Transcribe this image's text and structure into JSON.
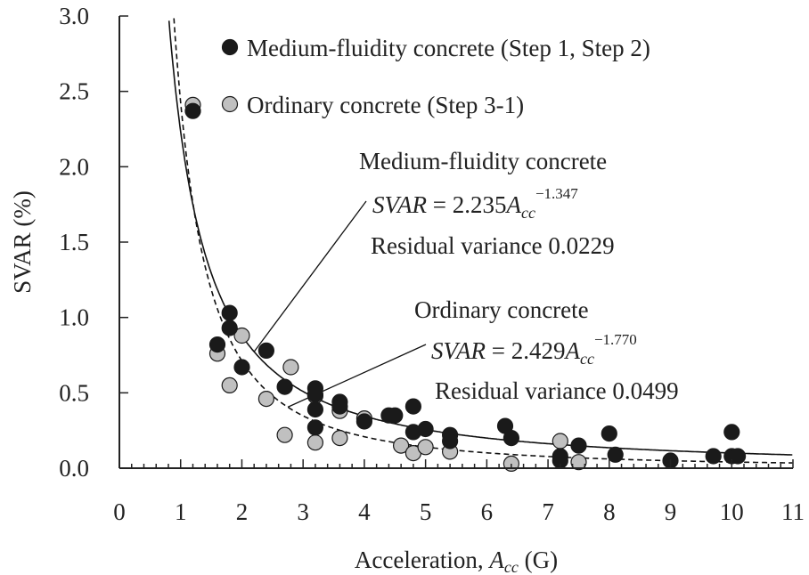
{
  "chart_data": {
    "type": "scatter",
    "xlabel_main": "Acceleration, ",
    "xlabel_var": "A",
    "xlabel_sub": "cc",
    "xlabel_unit": " (G)",
    "ylabel": "SVAR (%)",
    "xlim": [
      0,
      11
    ],
    "ylim": [
      0,
      3
    ],
    "x_ticks": [
      "0",
      "1",
      "2",
      "3",
      "4",
      "5",
      "6",
      "7",
      "8",
      "9",
      "10",
      "11"
    ],
    "y_ticks": [
      "0.0",
      "0.5",
      "1.0",
      "1.5",
      "2.0",
      "2.5",
      "3.0"
    ],
    "legend": [
      {
        "label": "Medium-fluidity concrete (Step 1, Step 2)",
        "color": "#1a1a1a"
      },
      {
        "label": "Ordinary concrete (Step 3-1)",
        "color": "#c0c0c0"
      }
    ],
    "series": [
      {
        "name": "Medium-fluidity concrete (Step 1, Step 2)",
        "color": "#1a1a1a",
        "points": [
          [
            1.2,
            2.37
          ],
          [
            1.6,
            0.82
          ],
          [
            1.8,
            1.03
          ],
          [
            1.8,
            0.93
          ],
          [
            2.0,
            0.67
          ],
          [
            2.4,
            0.78
          ],
          [
            2.7,
            0.54
          ],
          [
            3.2,
            0.53
          ],
          [
            3.2,
            0.49
          ],
          [
            3.2,
            0.39
          ],
          [
            3.2,
            0.27
          ],
          [
            3.6,
            0.44
          ],
          [
            3.6,
            0.41
          ],
          [
            4.0,
            0.31
          ],
          [
            4.4,
            0.35
          ],
          [
            4.5,
            0.35
          ],
          [
            4.8,
            0.41
          ],
          [
            4.8,
            0.24
          ],
          [
            5.0,
            0.26
          ],
          [
            5.4,
            0.22
          ],
          [
            5.4,
            0.18
          ],
          [
            6.3,
            0.28
          ],
          [
            6.4,
            0.2
          ],
          [
            7.2,
            0.08
          ],
          [
            7.2,
            0.05
          ],
          [
            7.5,
            0.15
          ],
          [
            8.0,
            0.23
          ],
          [
            8.1,
            0.09
          ],
          [
            9.0,
            0.05
          ],
          [
            9.7,
            0.08
          ],
          [
            10.0,
            0.08
          ],
          [
            10.0,
            0.24
          ],
          [
            10.1,
            0.08
          ]
        ]
      },
      {
        "name": "Ordinary concrete (Step 3-1)",
        "color": "#c0c0c0",
        "points": [
          [
            1.2,
            2.41
          ],
          [
            1.6,
            0.76
          ],
          [
            1.8,
            0.55
          ],
          [
            2.0,
            0.88
          ],
          [
            2.4,
            0.46
          ],
          [
            2.7,
            0.22
          ],
          [
            2.8,
            0.67
          ],
          [
            3.2,
            0.48
          ],
          [
            3.2,
            0.17
          ],
          [
            3.6,
            0.38
          ],
          [
            3.6,
            0.2
          ],
          [
            4.0,
            0.33
          ],
          [
            4.6,
            0.15
          ],
          [
            4.8,
            0.1
          ],
          [
            5.0,
            0.14
          ],
          [
            5.4,
            0.11
          ],
          [
            6.4,
            0.03
          ],
          [
            7.2,
            0.18
          ],
          [
            7.5,
            0.04
          ]
        ]
      }
    ],
    "fits": [
      {
        "name": "Medium-fluidity concrete",
        "coef": 2.235,
        "exp": -1.347,
        "style": "solid",
        "eq_lhs": "SVAR",
        "eq_eq": " = ",
        "eq_coef": "2.235",
        "eq_var": "A",
        "eq_sub": "cc",
        "eq_exp": "−1.347",
        "residual": "Residual variance 0.0229"
      },
      {
        "name": "Ordinary concrete",
        "coef": 2.429,
        "exp": -1.77,
        "style": "dashed",
        "eq_lhs": "SVAR",
        "eq_eq": " = ",
        "eq_coef": "2.429",
        "eq_var": "A",
        "eq_sub": "cc",
        "eq_exp": "−1.770",
        "residual": "Residual variance 0.0499"
      }
    ]
  }
}
